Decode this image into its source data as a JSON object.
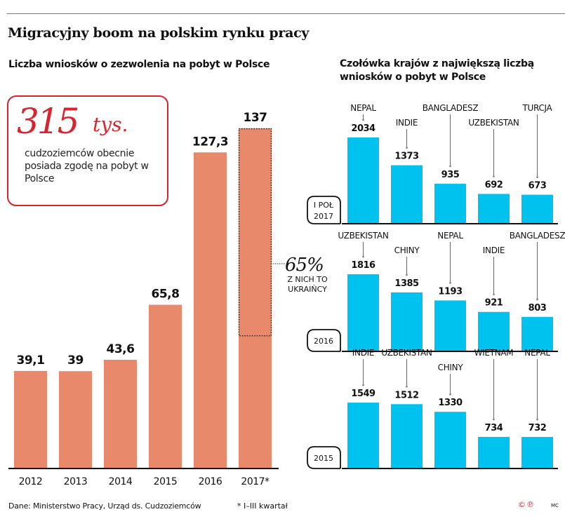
{
  "header": {
    "title": "Migracyjny boom na polskim rynku pracy",
    "left_subtitle": "Liczba wniosków o zezwolenia na pobyt w Polsce",
    "right_subtitle": "Czołówka krajów z największą liczbą wniosków o pobyt w Polsce"
  },
  "highlight": {
    "number": "315",
    "unit": "tys.",
    "text": "cudzoziemców obecnie posiada zgodę na pobyt w Polsce"
  },
  "annotation": {
    "percent": "65%",
    "line1": "Z NICH TO",
    "line2": "UKRAIŃCY"
  },
  "footer": {
    "source": "Dane: Ministerstwo Pracy, Urząd ds. Cudzoziemców",
    "note": "*  I–III kwartał",
    "copyright": "©℗",
    "author": "MC"
  },
  "colors": {
    "main_bar": "#e8896c",
    "country_bar": "#00c2ee",
    "accent_red": "#d9232e"
  },
  "chart_data": [
    {
      "type": "bar",
      "title": "Liczba wniosków o zezwolenia na pobyt w Polsce",
      "unit": "tys.",
      "categories": [
        "2012",
        "2013",
        "2014",
        "2015",
        "2016",
        "2017*"
      ],
      "values": [
        39.1,
        39,
        43.6,
        65.8,
        127.3,
        137
      ],
      "value_labels": [
        "39,1",
        "39",
        "43,6",
        "65,8",
        "127,3",
        "137"
      ],
      "highlight": {
        "category": "2017*",
        "share_ukrainians": 0.65,
        "label": "65% Z NICH TO UKRAIŃCY"
      },
      "xlabel": "",
      "ylabel": "",
      "ylim": [
        0,
        140
      ],
      "grid": false
    },
    {
      "type": "bar",
      "period": "I POŁ 2017",
      "period_lines": [
        "I POŁ",
        "2017"
      ],
      "categories": [
        "NEPAL",
        "INDIE",
        "BANGLADESZ",
        "UZBEKISTAN",
        "TURCJA"
      ],
      "values": [
        2034,
        1373,
        935,
        692,
        673
      ]
    },
    {
      "type": "bar",
      "period": "2016",
      "period_lines": [
        "2016"
      ],
      "categories": [
        "UZBEKISTAN",
        "CHINY",
        "NEPAL",
        "INDIE",
        "BANGLADESZ"
      ],
      "values": [
        1816,
        1385,
        1193,
        921,
        803
      ]
    },
    {
      "type": "bar",
      "period": "2015",
      "period_lines": [
        "2015"
      ],
      "categories": [
        "INDIE",
        "UZBEKISTAN",
        "CHINY",
        "WIETNAM",
        "NEPAL"
      ],
      "values": [
        1549,
        1512,
        1330,
        734,
        732
      ]
    }
  ]
}
